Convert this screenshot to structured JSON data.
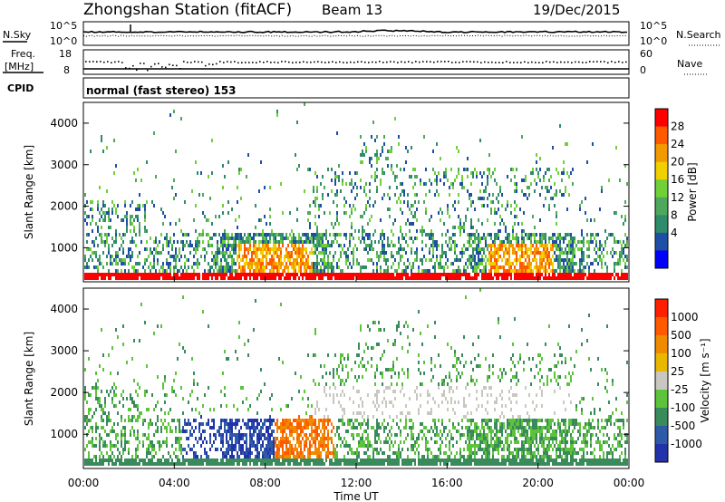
{
  "header": {
    "title": "Zhongshan Station (fitACF)",
    "beam": "Beam 13",
    "date": "19/Dec/2015"
  },
  "top_panels": {
    "nsky_label": "N.Sky",
    "nsky_ticks": [
      "10^5",
      "10^0"
    ],
    "nsearch_label": "N.Search",
    "nsearch_ticks": [
      "10^5",
      "10^0"
    ],
    "freq_label_1": "Freq.",
    "freq_label_2": "[MHz]",
    "freq_ticks": [
      "18",
      "8"
    ],
    "nave_label": "Nave",
    "nave_ticks": [
      "60",
      "0"
    ],
    "cpid_label": "CPID",
    "cpid_text": "normal (fast stereo) 153"
  },
  "colors": {
    "power_scale": [
      "#0000ff",
      "#1f4fa5",
      "#2f8b6a",
      "#4ea85c",
      "#6fd03a",
      "#f0d000",
      "#f29a00",
      "#ff5a00",
      "#ff0000"
    ],
    "velocity_scale": [
      "#2233aa",
      "#2f5aa8",
      "#3a8b5c",
      "#5cc33a",
      "#c8c8c0",
      "#e8b800",
      "#f08a00",
      "#ff5a00",
      "#ff2000"
    ]
  },
  "chart_data": [
    {
      "type": "heatmap",
      "panel": "power",
      "ylabel": "Slant Range [km]",
      "yticks": [
        "4000",
        "3000",
        "2000",
        "1000"
      ],
      "ylim": [
        180,
        4500
      ],
      "xlim": [
        0,
        24
      ],
      "xticks": [
        "00:00",
        "04:00",
        "08:00",
        "12:00",
        "16:00",
        "20:00",
        "00:00"
      ],
      "colorbar_label": "Power [dB]",
      "colorbar_ticks": [
        "28",
        "24",
        "20",
        "16",
        "12",
        "8",
        "4"
      ],
      "colorbar_range": [
        0,
        30
      ]
    },
    {
      "type": "heatmap",
      "panel": "velocity",
      "ylabel": "Slant Range [km]",
      "yticks": [
        "4000",
        "3000",
        "2000",
        "1000"
      ],
      "ylim": [
        180,
        4500
      ],
      "xlim": [
        0,
        24
      ],
      "xticks": [
        "00:00",
        "04:00",
        "08:00",
        "12:00",
        "16:00",
        "20:00",
        "00:00"
      ],
      "xlabel": "Time UT",
      "colorbar_label": "Velocity [m s⁻¹]",
      "colorbar_ticks": [
        "1000",
        "500",
        "100",
        "25",
        "-25",
        "-100",
        "-500",
        "-1000"
      ]
    }
  ]
}
